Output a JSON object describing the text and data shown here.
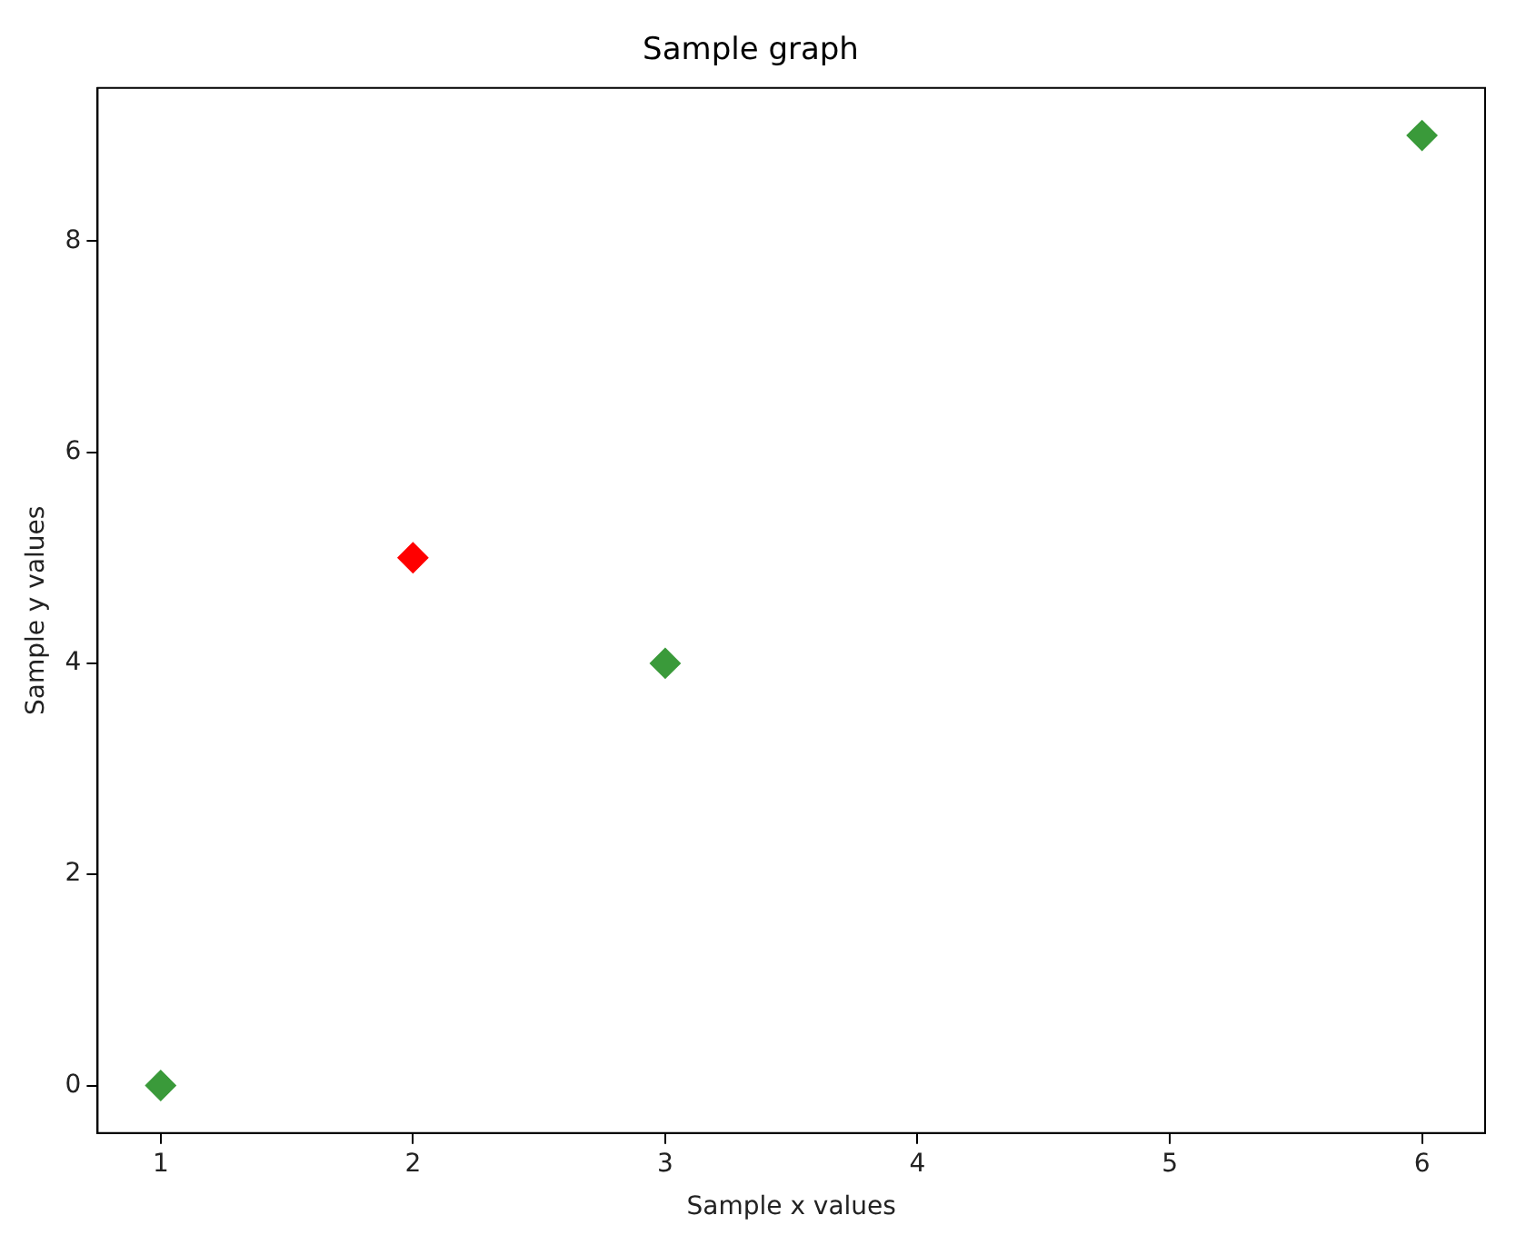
{
  "chart_data": {
    "type": "scatter",
    "title": "Sample graph",
    "xlabel": "Sample x values",
    "ylabel": "Sample y values",
    "x": [
      1,
      2,
      3,
      6
    ],
    "values": [
      0,
      5,
      4,
      9
    ],
    "colors": [
      "#3a9a3a",
      "#ff0000",
      "#3a9a3a",
      "#3a9a3a"
    ],
    "marker": "diamond",
    "grid": false,
    "legend": false,
    "xlim": [
      0.75,
      6.25
    ],
    "xticks": [
      1,
      2,
      3,
      4,
      5,
      6
    ],
    "ylim": [
      -0.45,
      9.45
    ],
    "yticks": [
      0,
      2,
      4,
      6,
      8
    ]
  }
}
